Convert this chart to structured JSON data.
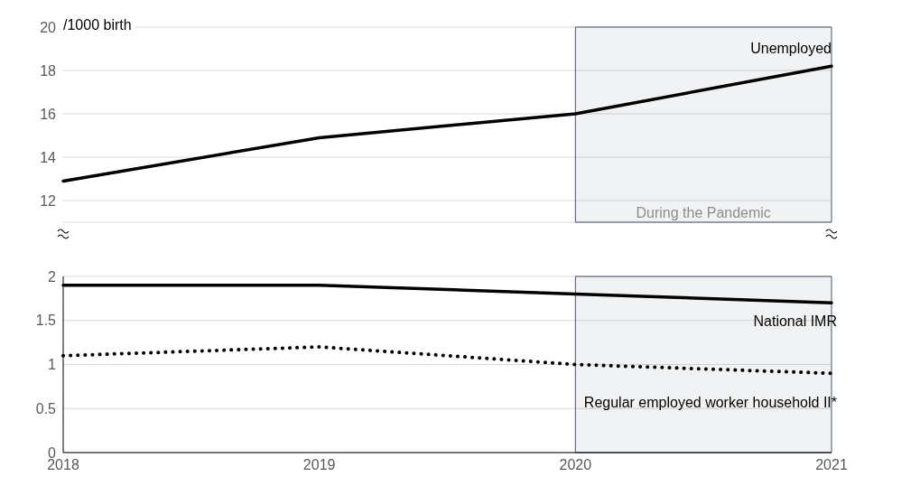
{
  "chart_data": [
    {
      "type": "line",
      "ylabel": "/1000 birth",
      "categories": [
        "2018",
        "2019",
        "2020",
        "2021"
      ],
      "ylim": [
        11,
        20
      ],
      "yticks": [
        12,
        14,
        16,
        18,
        20
      ],
      "grid": "y",
      "tick_labels": "y",
      "marker": "none",
      "series": [
        {
          "name": "Unemployed",
          "color": "#000000",
          "line_style": "solid",
          "values": [
            12.9,
            14.9,
            16.0,
            18.2
          ]
        }
      ],
      "bands": [
        {
          "axis": "x",
          "from": "2020",
          "to": "2021",
          "label": "During the Pandemic",
          "color": "#44546a"
        }
      ]
    },
    {
      "type": "line",
      "categories": [
        "2018",
        "2019",
        "2020",
        "2021"
      ],
      "ylim": [
        0,
        2
      ],
      "yticks": [
        0,
        0.5,
        1,
        1.5,
        2
      ],
      "grid": "y",
      "marker": "none",
      "series": [
        {
          "name": "National IMR",
          "color": "#000000",
          "line_style": "solid",
          "values": [
            1.9,
            1.9,
            1.8,
            1.7
          ]
        },
        {
          "name": "Regular employed worker household II*",
          "color": "#000000",
          "line_style": "dotted",
          "values": [
            1.1,
            1.2,
            1.0,
            0.9
          ]
        }
      ],
      "bands": [
        {
          "axis": "x",
          "from": "2020",
          "to": "2021",
          "color": "#44546a"
        }
      ]
    }
  ]
}
